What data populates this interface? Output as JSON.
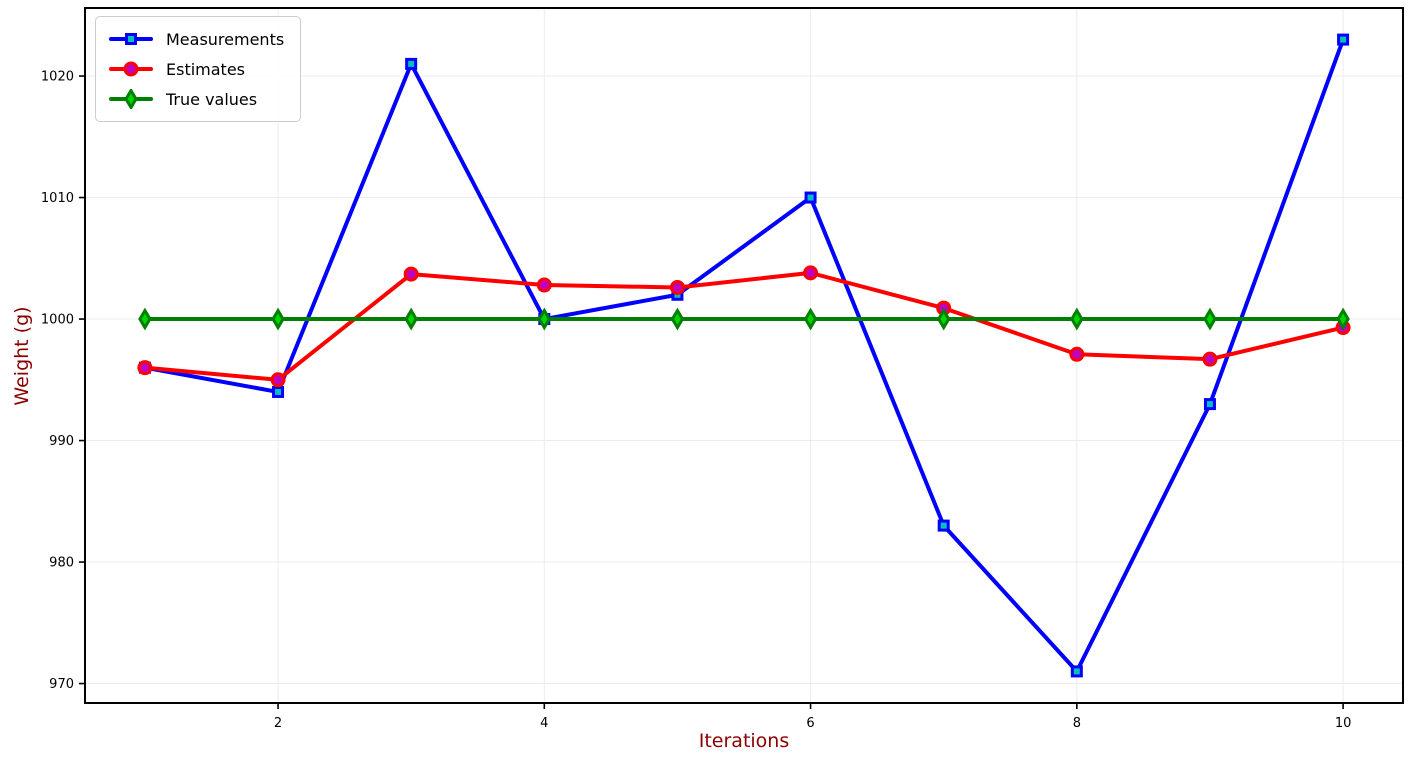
{
  "chart_data": {
    "type": "line",
    "title": "",
    "xlabel": "Iterations",
    "ylabel": "Weight (g)",
    "x": [
      1,
      2,
      3,
      4,
      5,
      6,
      7,
      8,
      9,
      10
    ],
    "series": [
      {
        "name": "Measurements",
        "values": [
          996,
          994,
          1021,
          1000,
          1002,
          1010,
          983,
          971,
          993,
          1023
        ],
        "color": "#0000ff",
        "marker": "square",
        "marker_fill": "#00bfbf"
      },
      {
        "name": "Estimates",
        "values": [
          996.0,
          995.0,
          1003.7,
          1002.8,
          1002.6,
          1003.8,
          1000.9,
          997.1,
          996.7,
          999.3
        ],
        "color": "#ff0000",
        "marker": "circle",
        "marker_fill": "#bf00bf"
      },
      {
        "name": "True values",
        "values": [
          1000,
          1000,
          1000,
          1000,
          1000,
          1000,
          1000,
          1000,
          1000,
          1000
        ],
        "color": "#008000",
        "marker": "diamond",
        "marker_fill": "#00d500"
      }
    ],
    "xlim": [
      0.55,
      10.45
    ],
    "ylim": [
      968.4,
      1025.6
    ],
    "xticks": [
      2,
      4,
      6,
      8,
      10
    ],
    "yticks": [
      970,
      980,
      990,
      1000,
      1010,
      1020
    ],
    "grid": true,
    "grid_color": "#ececec",
    "legend_position": "upper-left",
    "axis_label_color": "#8b0000",
    "tick_label_color": "#000000",
    "spine_color": "#000000"
  }
}
